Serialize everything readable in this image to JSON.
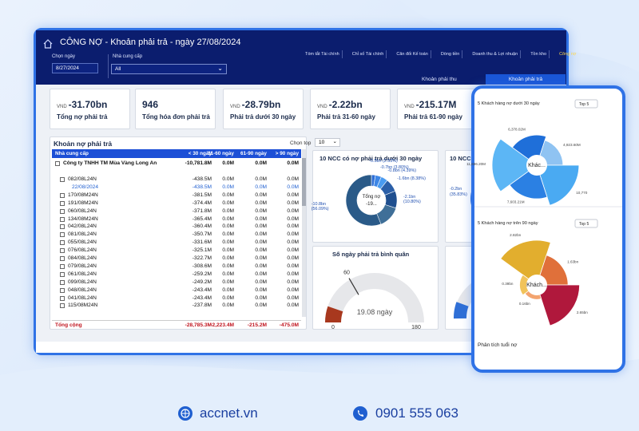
{
  "header": {
    "title": "CÔNG NỢ - Khoản phải trả - ngày 27/08/2024",
    "nav": [
      "Tóm tắt Tài chính",
      "Chỉ số Tài chính",
      "Cân đối Kế toán",
      "Dòng tiền",
      "Doanh thu & Lợi nhuận",
      "Tồn kho",
      "Công nợ"
    ],
    "filters": [
      {
        "label": "Chọn ngày",
        "value": "8/27/2024"
      },
      {
        "label": "Nhà cung cấp",
        "value": "All"
      }
    ],
    "tabs": [
      "Khoản phải thu",
      "Khoản phải trả"
    ]
  },
  "kpis": [
    {
      "unit": "VND",
      "value": "-31.70bn",
      "label": "Tổng nợ phải trả"
    },
    {
      "value": "946",
      "label": "Tổng hóa đơn phải trả"
    },
    {
      "unit": "VND",
      "value": "-28.79bn",
      "label": "Phải trả dưới 30 ngày"
    },
    {
      "unit": "VND",
      "value": "-2.22bn",
      "label": "Phải trả 31-60 ngày"
    },
    {
      "unit": "VND",
      "value": "-215.17M",
      "label": "Phải trả 61-90 ngày"
    }
  ],
  "table": {
    "title": "Khoản nợ phải trả",
    "columns": [
      "Nhà cung cấp",
      "< 30 ngày",
      "31-60 ngày",
      "61-90 ngày",
      "> 90 ngày"
    ],
    "rows": [
      [
        "Công ty TNHH TM Mùa Vàng Long An",
        "-10,781.8M",
        "0.0M",
        "0.0M",
        "0.0M"
      ],
      [
        "082/08L24N",
        "-438.5M",
        "0.0M",
        "0.0M",
        "0.0M"
      ],
      [
        "22/08/2024",
        "-438.5M",
        "0.0M",
        "0.0M",
        "0.0M"
      ],
      [
        "170/08M24N",
        "-381.5M",
        "0.0M",
        "0.0M",
        "0.0M"
      ],
      [
        "191/08M24N",
        "-374.4M",
        "0.0M",
        "0.0M",
        "0.0M"
      ],
      [
        "060/08L24N",
        "-371.8M",
        "0.0M",
        "0.0M",
        "0.0M"
      ],
      [
        "134/08M24N",
        "-365.4M",
        "0.0M",
        "0.0M",
        "0.0M"
      ],
      [
        "042/08L24N",
        "-360.4M",
        "0.0M",
        "0.0M",
        "0.0M"
      ],
      [
        "081/08L24N",
        "-350.7M",
        "0.0M",
        "0.0M",
        "0.0M"
      ],
      [
        "055/08L24N",
        "-331.6M",
        "0.0M",
        "0.0M",
        "0.0M"
      ],
      [
        "076/08L24N",
        "-325.1M",
        "0.0M",
        "0.0M",
        "0.0M"
      ],
      [
        "084/08L24N",
        "-322.7M",
        "0.0M",
        "0.0M",
        "0.0M"
      ],
      [
        "079/08L24N",
        "-308.6M",
        "0.0M",
        "0.0M",
        "0.0M"
      ],
      [
        "061/08L24N",
        "-259.2M",
        "0.0M",
        "0.0M",
        "0.0M"
      ],
      [
        "099/08L24N",
        "-249.2M",
        "0.0M",
        "0.0M",
        "0.0M"
      ],
      [
        "048/08L24N",
        "-243.4M",
        "0.0M",
        "0.0M",
        "0.0M"
      ],
      [
        "041/08L24N",
        "-243.4M",
        "0.0M",
        "0.0M",
        "0.0M"
      ],
      [
        "115/08M24N",
        "-237.8M",
        "0.0M",
        "0.0M",
        "0.0M"
      ]
    ],
    "total": [
      "Tổng cộng",
      "-28,785.3M",
      "-2,223.4M",
      "-215.2M",
      "-475.0M"
    ]
  },
  "top_picker": {
    "label": "Chọn top",
    "value": "10"
  },
  "donut": {
    "type": "pie",
    "title": "10 NCC có nợ phải trả dưới 30 ngày",
    "center_label": "Tổng nợ",
    "center_value": "-19...",
    "values": [
      2.53,
      3.8,
      4.39,
      8.38,
      10.8,
      56.09
    ],
    "value_labels": [
      "-0.5bn (2.53%)",
      "-0.7bn (3.80%)",
      "-0.8bn (4.39%)",
      "-1.6bn (8.38%)",
      "-2.1bn (10.80%)",
      "-10.8bn (56.09%)"
    ],
    "colors": [
      "#2f6fd6",
      "#3d86e6",
      "#4a9bf0",
      "#2b5fa8",
      "#1f4f8f",
      "#2a5a88"
    ]
  },
  "partial_card": {
    "title": "10 NCC",
    "label": "-0.2bn (35.83%)"
  },
  "gauge": {
    "type": "gauge",
    "title": "Số ngày phải trả bình quân",
    "min": 0,
    "max": 180,
    "target": 60,
    "value": 19.08,
    "value_label": "19.08 ngày",
    "color": "#a8381e"
  },
  "phone": {
    "charts": [
      {
        "type": "sunburst",
        "title": "5 Khách hàng nợ dưới 30 ngày",
        "picker": "Top 5",
        "center": "Khác...",
        "values": [
          6378.02,
          4923.6,
          10770,
          7603.21,
          11686.2
        ],
        "value_labels": [
          "6,378.02M",
          "4,923.60M",
          "10,770",
          "7,603.21M",
          "11,686.20M"
        ],
        "colors": [
          "#1f6fd9",
          "#8fc3f2",
          "#4aaaf2",
          "#2b80e3",
          "#5cb6f5"
        ]
      },
      {
        "type": "sunburst",
        "title": "5 Khách hàng nợ trên 90 ngày",
        "picker": "Top 5",
        "center": "Khách...",
        "values": [
          2.82,
          1.63,
          2.65,
          0.16,
          0.39
        ],
        "value_labels": [
          "2.82bn",
          "1.63bn",
          "2.65bn",
          "0.16bn",
          "0.39bn"
        ],
        "colors": [
          "#e2ae2e",
          "#e0703a",
          "#b0183c",
          "#f3a46f",
          "#f1c35a"
        ]
      }
    ],
    "footer_title": "Phân tích tuổi nợ"
  },
  "footer": {
    "website": "accnet.vn",
    "phone": "0901 555 063"
  }
}
